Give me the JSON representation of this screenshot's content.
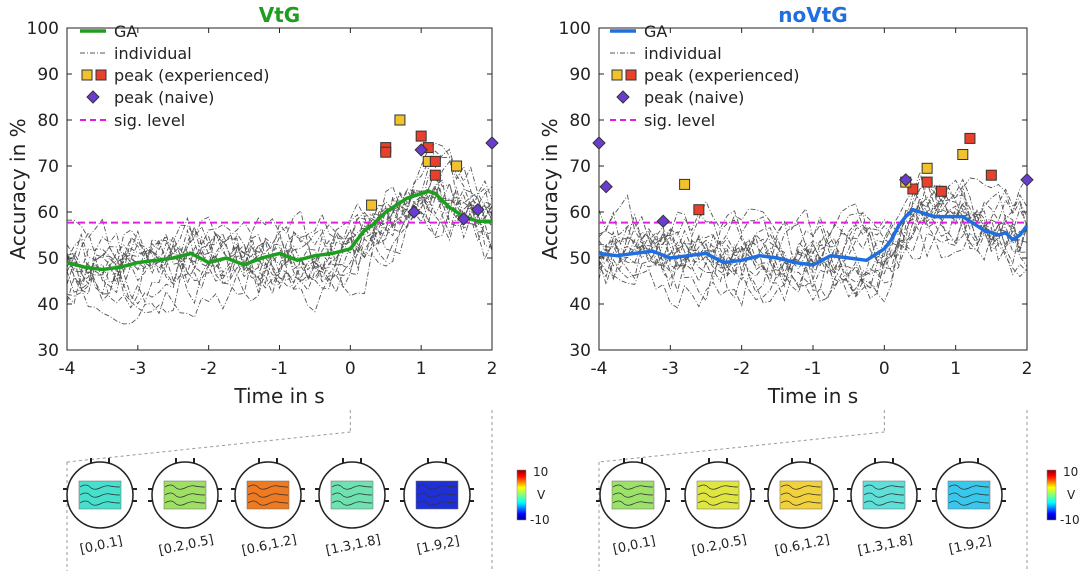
{
  "chart_data": [
    {
      "type": "line",
      "title": "VtG",
      "title_color": "#1e9e1e",
      "xlabel": "Time in s",
      "ylabel": "Accuracy in %",
      "xlim": [
        -4,
        2
      ],
      "ylim": [
        30,
        100
      ],
      "x_ticks": [
        "-4",
        "-3",
        "-2",
        "-1",
        "0",
        "1",
        "2"
      ],
      "y_ticks": [
        "30",
        "40",
        "50",
        "60",
        "70",
        "80",
        "90",
        "100"
      ],
      "legend": {
        "position": "top-left",
        "ga": "GA",
        "individual": "individual",
        "peak_experienced": "peak (experienced)",
        "peak_naive": "peak (naive)",
        "sig_level": "sig. level"
      },
      "sig_level": 57.7,
      "ga_color": "#1e9e1e",
      "ga": {
        "x": [
          -4,
          -3.75,
          -3.5,
          -3.25,
          -3,
          -2.75,
          -2.5,
          -2.25,
          -2,
          -1.75,
          -1.5,
          -1.25,
          -1,
          -0.75,
          -0.5,
          -0.25,
          0,
          0.1,
          0.2,
          0.3,
          0.4,
          0.5,
          0.6,
          0.7,
          0.8,
          0.9,
          1,
          1.1,
          1.2,
          1.3,
          1.4,
          1.5,
          1.6,
          1.7,
          1.8,
          1.9,
          2
        ],
        "y": [
          49,
          48,
          47.5,
          48,
          49,
          49.5,
          50,
          51,
          49,
          50,
          48.5,
          50,
          51,
          49.5,
          50.5,
          51,
          52,
          54,
          56,
          57,
          58.5,
          60,
          61,
          62,
          63,
          63.5,
          64,
          64.5,
          64,
          62.5,
          61,
          60,
          59,
          58.5,
          58,
          58,
          58
        ]
      },
      "peaks_experienced": [
        {
          "x": 0.3,
          "y": 61.5
        },
        {
          "x": 0.5,
          "y": 74
        },
        {
          "x": 0.5,
          "y": 73
        },
        {
          "x": 0.7,
          "y": 80
        },
        {
          "x": 1.0,
          "y": 76.5
        },
        {
          "x": 1.1,
          "y": 74
        },
        {
          "x": 1.1,
          "y": 71
        },
        {
          "x": 1.2,
          "y": 71
        },
        {
          "x": 1.2,
          "y": 68
        },
        {
          "x": 1.5,
          "y": 70
        }
      ],
      "peaks_naive": [
        {
          "x": 0.9,
          "y": 60
        },
        {
          "x": 1.0,
          "y": 73.5
        },
        {
          "x": 1.6,
          "y": 58.5
        },
        {
          "x": 1.8,
          "y": 60.5
        },
        {
          "x": 2.0,
          "y": 75
        }
      ],
      "topomaps": {
        "labels": [
          "[0,0.1]",
          "[0.2,0.5]",
          "[0.6,1.2]",
          "[1.3,1.8]",
          "[1.9,2]"
        ],
        "colors": [
          "#46e0cc",
          "#9ee064",
          "#ee7a22",
          "#6ee2b0",
          "#2030d8"
        ],
        "colorbar_max": "10",
        "colorbar_min": "-10",
        "colorbar_unit": "V"
      }
    },
    {
      "type": "line",
      "title": "noVtG",
      "title_color": "#1f6fe0",
      "xlabel": "Time in s",
      "ylabel": "Accuracy in %",
      "xlim": [
        -4,
        2
      ],
      "ylim": [
        30,
        100
      ],
      "x_ticks": [
        "-4",
        "-3",
        "-2",
        "-1",
        "0",
        "1",
        "2"
      ],
      "y_ticks": [
        "30",
        "40",
        "50",
        "60",
        "70",
        "80",
        "90",
        "100"
      ],
      "legend": {
        "position": "top-left",
        "ga": "GA",
        "individual": "individual",
        "peak_experienced": "peak (experienced)",
        "peak_naive": "peak (naive)",
        "sig_level": "sig. level"
      },
      "sig_level": 57.7,
      "ga_color": "#1f6fe0",
      "ga": {
        "x": [
          -4,
          -3.75,
          -3.5,
          -3.25,
          -3,
          -2.75,
          -2.5,
          -2.25,
          -2,
          -1.75,
          -1.5,
          -1.25,
          -1,
          -0.75,
          -0.5,
          -0.25,
          0,
          0.1,
          0.2,
          0.3,
          0.4,
          0.5,
          0.6,
          0.7,
          0.8,
          0.9,
          1,
          1.1,
          1.2,
          1.3,
          1.4,
          1.5,
          1.6,
          1.7,
          1.8,
          1.9,
          2
        ],
        "y": [
          51,
          50.5,
          51,
          51.5,
          50,
          50.5,
          51,
          49,
          49.5,
          50.5,
          50,
          49,
          48.5,
          50.5,
          50,
          49.5,
          52,
          54,
          57,
          59,
          60.5,
          60,
          59.5,
          59,
          59,
          59,
          59,
          59,
          58,
          57,
          56,
          55.5,
          55,
          55.5,
          54,
          55,
          57
        ]
      },
      "peaks_experienced": [
        {
          "x": -2.8,
          "y": 66
        },
        {
          "x": -2.6,
          "y": 60.5
        },
        {
          "x": 0.4,
          "y": 65
        },
        {
          "x": 0.6,
          "y": 69.5
        },
        {
          "x": 0.6,
          "y": 66.5
        },
        {
          "x": 0.8,
          "y": 64.5
        },
        {
          "x": 1.1,
          "y": 72.5
        },
        {
          "x": 1.2,
          "y": 76
        },
        {
          "x": 1.5,
          "y": 68
        },
        {
          "x": 0.3,
          "y": 66.5
        }
      ],
      "peaks_naive": [
        {
          "x": -4.0,
          "y": 75
        },
        {
          "x": -3.9,
          "y": 65.5
        },
        {
          "x": -3.1,
          "y": 58
        },
        {
          "x": 0.3,
          "y": 67
        },
        {
          "x": 2.0,
          "y": 67
        }
      ],
      "topomaps": {
        "labels": [
          "[0,0.1]",
          "[0.2,0.5]",
          "[0.6,1.2]",
          "[1.3,1.8]",
          "[1.9,2]"
        ],
        "colors": [
          "#9ce26a",
          "#dfe640",
          "#f2d23c",
          "#5ee0d8",
          "#38c8ee"
        ],
        "colorbar_max": "10",
        "colorbar_min": "-10",
        "colorbar_unit": "V"
      }
    }
  ]
}
